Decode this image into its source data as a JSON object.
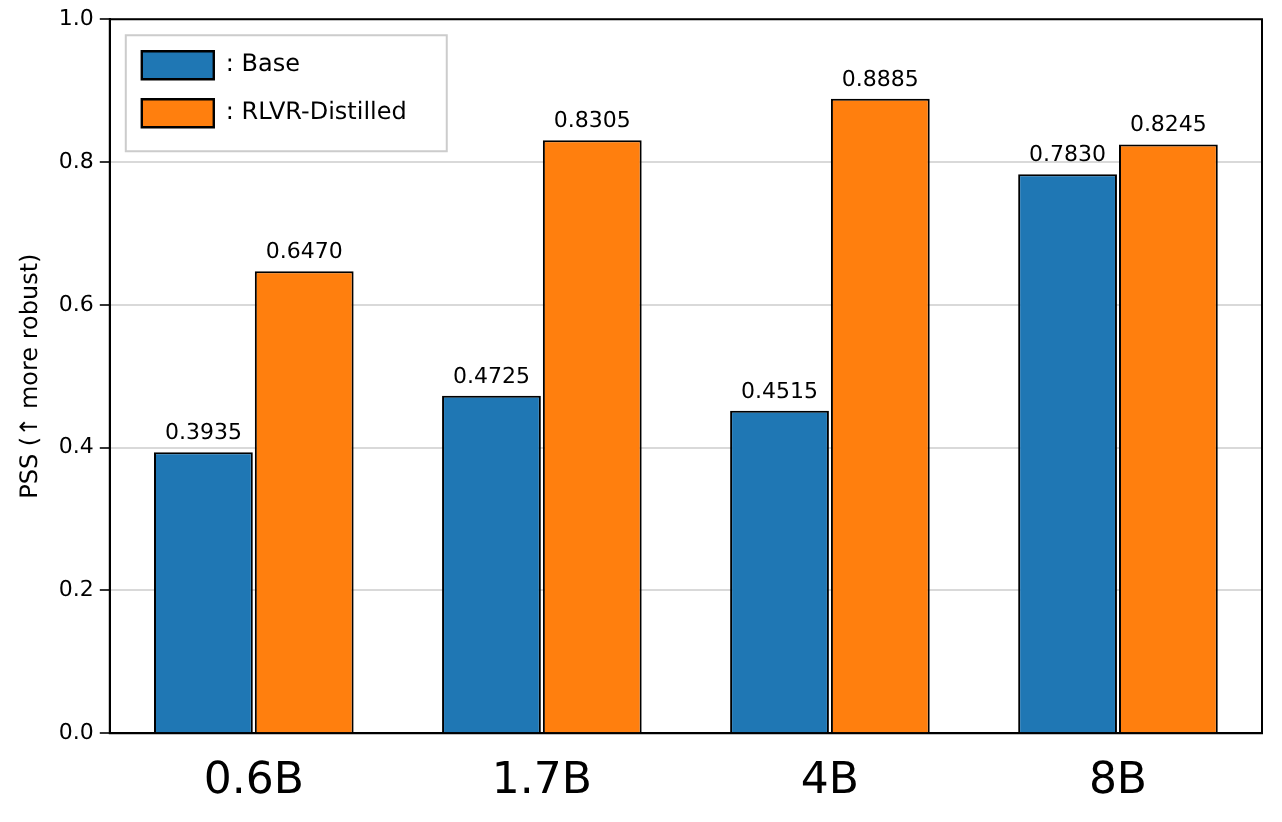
{
  "chart_data": {
    "type": "bar",
    "ylabel": "PSS (↑ more robust)",
    "categories": [
      "0.6B",
      "1.7B",
      "4B",
      "8B"
    ],
    "series": [
      {
        "name": ": Base",
        "color": "#1f77b4",
        "values": [
          0.3935,
          0.4725,
          0.4515,
          0.783
        ],
        "value_labels": [
          "0.3935",
          "0.4725",
          "0.4515",
          "0.7830"
        ]
      },
      {
        "name": ": RLVR-Distilled",
        "color": "#ff7f0e",
        "values": [
          0.647,
          0.8305,
          0.8885,
          0.8245
        ],
        "value_labels": [
          "0.6470",
          "0.8305",
          "0.8885",
          "0.8245"
        ]
      }
    ],
    "ylim": [
      0,
      1
    ],
    "yticks": [
      {
        "value": 0,
        "label": "0.0"
      },
      0.2,
      0.4,
      0.6,
      0.8,
      {
        "value": 1,
        "label": "1.0"
      }
    ],
    "grid": "y",
    "legend": "top left"
  }
}
